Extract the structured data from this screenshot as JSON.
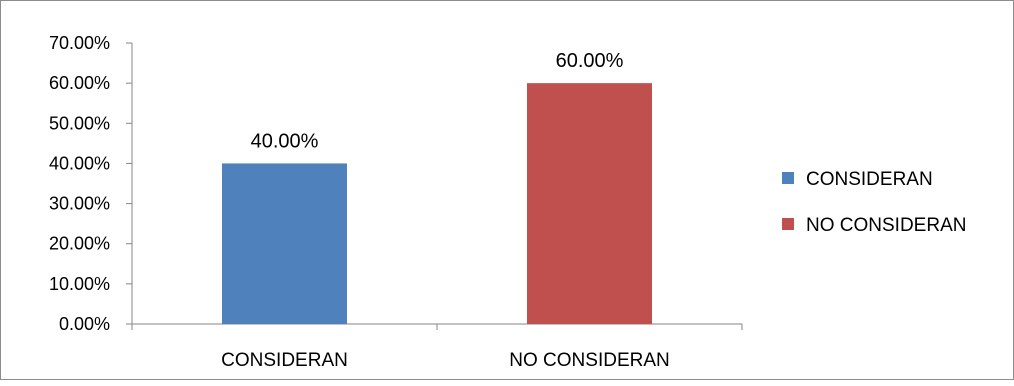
{
  "chart_data": {
    "type": "bar",
    "title": "",
    "xlabel": "",
    "ylabel": "",
    "categories": [
      "CONSIDERAN",
      "NO CONSIDERAN"
    ],
    "values": [
      0.4,
      0.6
    ],
    "data_labels": [
      "40.00%",
      "60.00%"
    ],
    "colors": [
      "#4F81BD",
      "#C0504D"
    ],
    "ylim": [
      0,
      0.7
    ],
    "y_ticks": [
      {
        "value": 0.0,
        "label": "0.00%"
      },
      {
        "value": 0.1,
        "label": "10.00%"
      },
      {
        "value": 0.2,
        "label": "20.00%"
      },
      {
        "value": 0.3,
        "label": "30.00%"
      },
      {
        "value": 0.4,
        "label": "40.00%"
      },
      {
        "value": 0.5,
        "label": "50.00%"
      },
      {
        "value": 0.6,
        "label": "60.00%"
      },
      {
        "value": 0.7,
        "label": "70.00%"
      }
    ],
    "grid": false,
    "legend": {
      "position": "right",
      "entries": [
        {
          "label": "CONSIDERAN",
          "color": "#4F81BD"
        },
        {
          "label": "NO CONSIDERAN",
          "color": "#C0504D"
        }
      ]
    }
  }
}
